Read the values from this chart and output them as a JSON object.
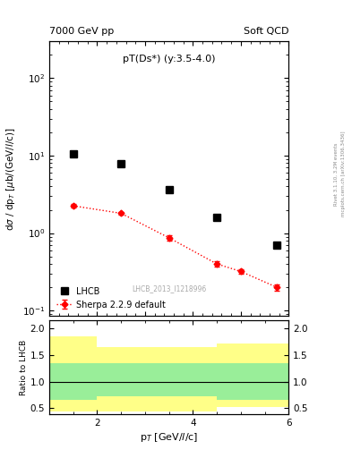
{
  "title_left": "7000 GeV pp",
  "title_right": "Soft QCD",
  "plot_label": "pT(Ds*) (y:3.5-4.0)",
  "watermark": "LHCB_2013_I1218996",
  "right_label1": "Rivet 3.1.10, 3.2M events",
  "right_label2": "mcplots.cern.ch [arXiv:1306.3436]",
  "ylabel_main": "dσ / dp_T [μb/(GeV//c)]",
  "ylabel_ratio": "Ratio to LHCB",
  "xlabel": "p_T [GeV//c]",
  "lhcb_x": [
    1.5,
    2.5,
    3.5,
    4.5,
    5.75
  ],
  "lhcb_y": [
    10.5,
    7.8,
    3.6,
    1.6,
    0.7
  ],
  "sherpa_x": [
    1.5,
    2.5,
    3.5,
    4.5,
    5.0,
    5.75
  ],
  "sherpa_y": [
    2.25,
    1.8,
    0.87,
    0.4,
    0.32,
    0.2
  ],
  "sherpa_yerr_lo": [
    0.12,
    0.08,
    0.06,
    0.03,
    0.025,
    0.02
  ],
  "sherpa_yerr_hi": [
    0.12,
    0.08,
    0.06,
    0.03,
    0.025,
    0.02
  ],
  "ratio_bins_x": [
    1.0,
    2.0,
    3.0,
    4.5,
    5.0,
    6.0
  ],
  "ratio_yellow_lo": [
    0.43,
    0.43,
    0.43,
    0.52,
    0.52
  ],
  "ratio_yellow_hi": [
    1.85,
    1.65,
    1.65,
    1.72,
    1.72
  ],
  "ratio_green_lo": [
    0.65,
    0.73,
    0.73,
    0.65,
    0.65
  ],
  "ratio_green_hi": [
    1.35,
    1.35,
    1.35,
    1.35,
    1.35
  ],
  "ylim_main": [
    0.085,
    300
  ],
  "ylim_ratio": [
    0.38,
    2.15
  ],
  "xlim": [
    1.0,
    6.0
  ],
  "background_color": "#ffffff"
}
